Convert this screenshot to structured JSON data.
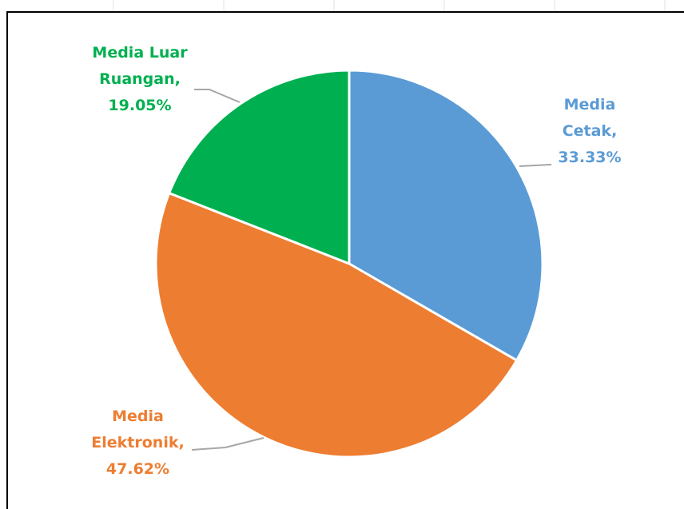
{
  "chart_data": {
    "type": "pie",
    "categories": [
      "Media Cetak",
      "Media Elektronik",
      "Media Luar Ruangan"
    ],
    "values": [
      33.33,
      47.62,
      19.05
    ],
    "value_labels": [
      "Media Cetak, 33.33%",
      "Media Elektronik, 47.62%",
      "Media Luar Ruangan, 19.05%"
    ],
    "colors": [
      "#5b9bd5",
      "#ed7d31",
      "#00b050"
    ]
  }
}
